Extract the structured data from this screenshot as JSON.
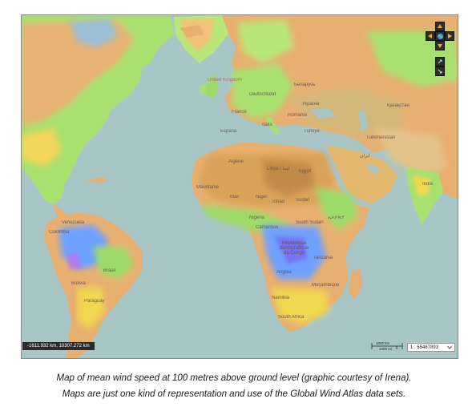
{
  "map": {
    "labels": {
      "united_kingdom": "United Kingdom",
      "deutschland": "Deutschland",
      "france": "France",
      "espana": "España",
      "italia": "Italia",
      "romania": "România",
      "ukraine": "Україна",
      "belarus": "Беларусь",
      "kazakhstan": "Қазақстан",
      "turkmenistan": "Türkmenistan",
      "turkiye": "Türkiye",
      "iran": "ایران",
      "algerie": "Algérie",
      "libya": "Libya / ليبيا",
      "egypt": "Egypt",
      "mauritanie": "Mauritanie",
      "mali": "Mali",
      "niger": "Niger",
      "tchad": "Tchad",
      "sudan": "Sudan",
      "nigeria": "Nigeria",
      "cameroun": "Cameroun",
      "south_sudan": "South Sudan",
      "ethiopia": "ኢትዮጵያ",
      "rdc": "République démocratique du Congo",
      "tanzania": "Tanzania",
      "angola": "Angola",
      "mocambique": "Moçambique",
      "namibia": "Namibia",
      "south_africa": "South Africa",
      "venezuela": "Venezuela",
      "colombia": "Colombia",
      "brasil": "Brasil",
      "bolivia": "Bolivia",
      "paraguay": "Paraguay",
      "india": "India"
    },
    "coordinates": "-1611.932 km, 10307.272 km",
    "scale_bar_top": "1000 km",
    "scale_bar_bottom": "1000 mi",
    "scale_ratio": "1 : 55467893",
    "scale_dropdown_icon": "chevron-down-icon",
    "colors": {
      "ocean": "#a9c6c6",
      "low_wind": "#e8b070",
      "medium_wind": "#9ddc6a",
      "high_wind": "#f0d850",
      "very_high_wind": "#6ea0ff",
      "desert": "#d9a35a"
    }
  },
  "caption": {
    "line1": "Map of mean wind speed at 100 metres above ground level (graphic courtesy of Irena).",
    "line2": "Maps are just one kind of representation and use of the Global Wind Atlas data sets."
  }
}
